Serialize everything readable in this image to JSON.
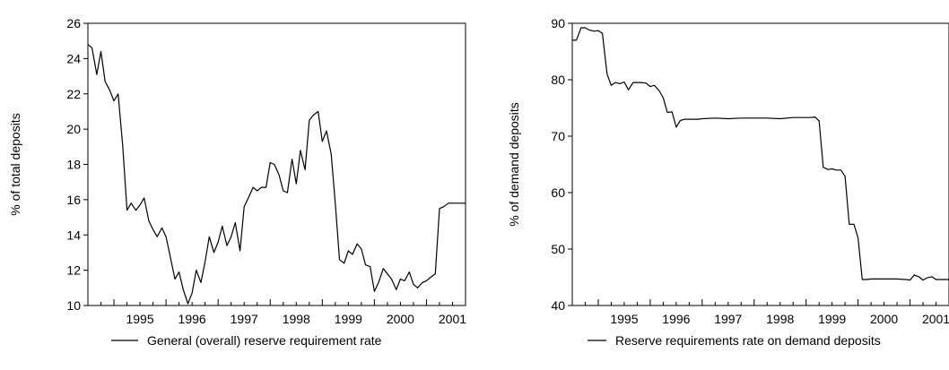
{
  "chart_data": [
    {
      "type": "line",
      "xlabel": "",
      "ylabel": "% of total deposits",
      "xlim": [
        1994.5,
        2001.75
      ],
      "ylim": [
        10,
        26
      ],
      "x_ticks": [
        1995,
        1996,
        1997,
        1998,
        1999,
        2000,
        2001
      ],
      "y_ticks": [
        10,
        12,
        14,
        16,
        18,
        20,
        22,
        24,
        26
      ],
      "grid": false,
      "legend_position": "bottom",
      "series": [
        {
          "name": "General (overall) reserve requirement rate",
          "color": "#000000",
          "x": [
            1994.5,
            1994.58,
            1994.67,
            1994.75,
            1994.83,
            1994.92,
            1995.0,
            1995.08,
            1995.17,
            1995.25,
            1995.33,
            1995.42,
            1995.5,
            1995.58,
            1995.67,
            1995.75,
            1995.83,
            1995.92,
            1996.0,
            1996.08,
            1996.17,
            1996.25,
            1996.33,
            1996.42,
            1996.5,
            1996.58,
            1996.67,
            1996.75,
            1996.83,
            1996.92,
            1997.0,
            1997.08,
            1997.17,
            1997.25,
            1997.33,
            1997.42,
            1997.5,
            1997.58,
            1997.67,
            1997.75,
            1997.83,
            1997.92,
            1998.0,
            1998.08,
            1998.17,
            1998.25,
            1998.33,
            1998.42,
            1998.5,
            1998.58,
            1998.67,
            1998.75,
            1998.83,
            1998.92,
            1999.0,
            1999.08,
            1999.17,
            1999.25,
            1999.33,
            1999.42,
            1999.5,
            1999.58,
            1999.67,
            1999.75,
            1999.83,
            1999.92,
            2000.0,
            2000.08,
            2000.17,
            2000.25,
            2000.33,
            2000.42,
            2000.5,
            2000.58,
            2000.67,
            2000.75,
            2000.83,
            2000.92,
            2001.0,
            2001.08,
            2001.17,
            2001.25,
            2001.33,
            2001.42,
            2001.5,
            2001.58,
            2001.67,
            2001.75
          ],
          "values": [
            24.8,
            24.6,
            23.1,
            24.4,
            22.7,
            22.2,
            21.6,
            22.0,
            19.0,
            15.4,
            15.8,
            15.4,
            15.7,
            16.1,
            14.8,
            14.3,
            13.9,
            14.4,
            13.9,
            12.8,
            11.5,
            11.9,
            10.9,
            10.1,
            10.7,
            12.0,
            11.3,
            12.5,
            13.9,
            13.0,
            13.6,
            14.5,
            13.4,
            13.9,
            14.7,
            13.1,
            15.6,
            16.1,
            16.7,
            16.5,
            16.7,
            16.7,
            18.1,
            18.0,
            17.4,
            16.5,
            16.4,
            18.3,
            16.9,
            18.8,
            17.7,
            20.5,
            20.8,
            21.0,
            19.3,
            19.9,
            18.6,
            15.8,
            12.6,
            12.4,
            13.1,
            12.9,
            13.5,
            13.2,
            12.3,
            12.2,
            10.8,
            11.3,
            12.1,
            11.8,
            11.5,
            10.9,
            11.5,
            11.4,
            11.9,
            11.2,
            11.0,
            11.3,
            11.4,
            11.6,
            11.8,
            15.5,
            15.6,
            15.8,
            15.8,
            15.8,
            15.8,
            15.8
          ]
        }
      ]
    },
    {
      "type": "line",
      "xlabel": "",
      "ylabel": "% of demand deposits",
      "xlim": [
        1994.5,
        2001.75
      ],
      "ylim": [
        40,
        90
      ],
      "x_ticks": [
        1995,
        1996,
        1997,
        1998,
        1999,
        2000,
        2001
      ],
      "y_ticks": [
        40,
        50,
        60,
        70,
        80,
        90
      ],
      "grid": false,
      "legend_position": "bottom",
      "series": [
        {
          "name": "Reserve requirements rate on demand deposits",
          "color": "#000000",
          "x": [
            1994.5,
            1994.58,
            1994.67,
            1994.75,
            1994.83,
            1994.92,
            1995.0,
            1995.08,
            1995.17,
            1995.25,
            1995.33,
            1995.42,
            1995.5,
            1995.58,
            1995.67,
            1995.75,
            1995.83,
            1995.92,
            1996.0,
            1996.08,
            1996.17,
            1996.25,
            1996.33,
            1996.42,
            1996.5,
            1996.58,
            1996.67,
            1996.75,
            1996.83,
            1996.92,
            1997.0,
            1997.25,
            1997.5,
            1997.75,
            1998.0,
            1998.25,
            1998.5,
            1998.75,
            1999.0,
            1999.08,
            1999.17,
            1999.25,
            1999.33,
            1999.42,
            1999.5,
            1999.58,
            1999.67,
            1999.75,
            1999.83,
            1999.92,
            2000.0,
            2000.08,
            2000.17,
            2000.25,
            2000.42,
            2000.58,
            2000.75,
            2000.92,
            2001.0,
            2001.08,
            2001.17,
            2001.25,
            2001.33,
            2001.42,
            2001.5,
            2001.58,
            2001.67,
            2001.75
          ],
          "values": [
            87.0,
            87.0,
            89.2,
            89.2,
            88.8,
            88.6,
            88.7,
            88.2,
            81.0,
            79.0,
            79.5,
            79.3,
            79.6,
            78.2,
            79.5,
            79.5,
            79.5,
            79.4,
            78.8,
            79.0,
            78.1,
            76.8,
            74.2,
            74.3,
            71.6,
            72.8,
            73.0,
            73.0,
            73.0,
            73.0,
            73.1,
            73.2,
            73.1,
            73.2,
            73.2,
            73.2,
            73.1,
            73.3,
            73.3,
            73.3,
            73.4,
            72.7,
            64.5,
            64.1,
            64.2,
            64.0,
            64.0,
            62.9,
            54.4,
            54.4,
            52.0,
            44.6,
            44.6,
            44.7,
            44.7,
            44.7,
            44.7,
            44.6,
            44.5,
            45.4,
            45.1,
            44.5,
            44.9,
            45.1,
            44.6,
            44.6,
            44.6,
            44.6
          ]
        }
      ]
    }
  ]
}
